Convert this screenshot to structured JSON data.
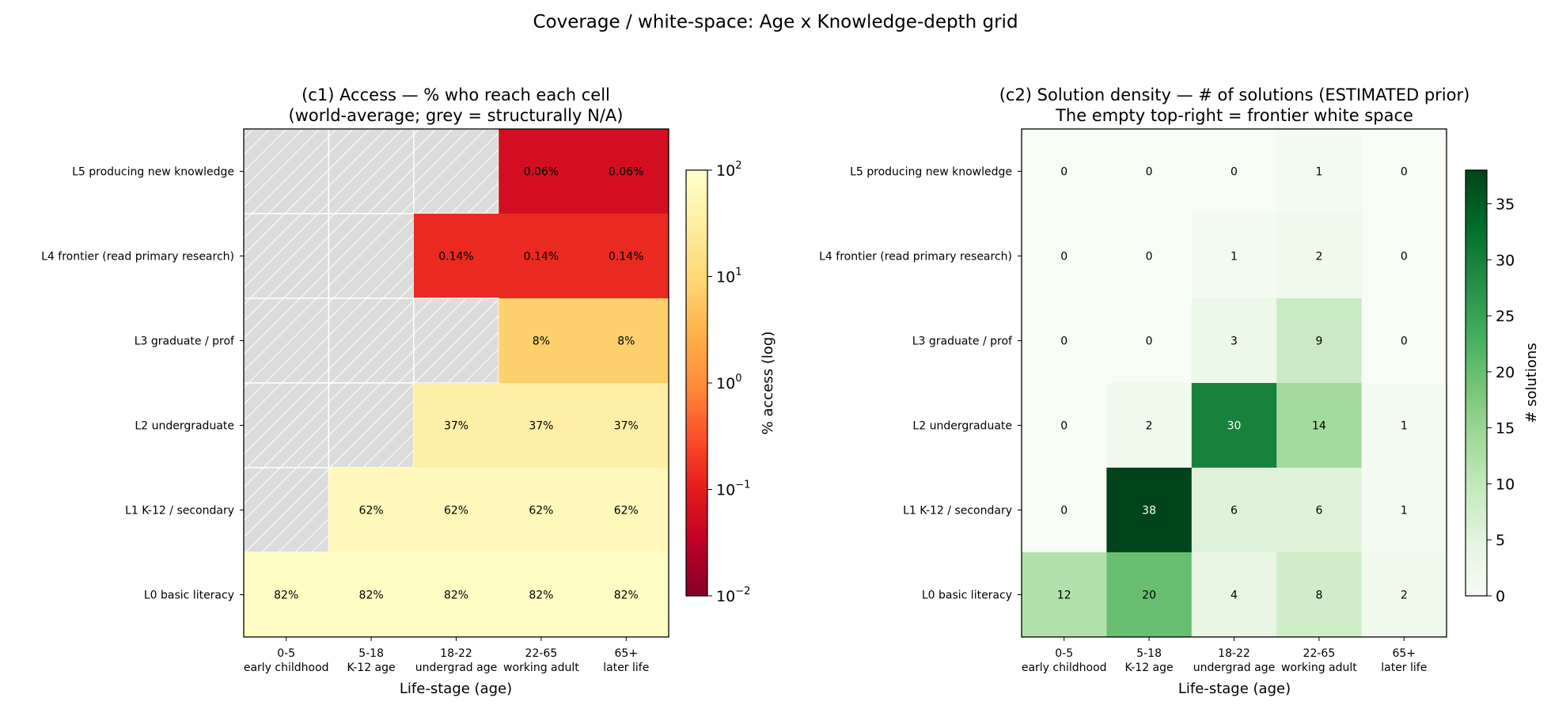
{
  "figure": {
    "suptitle": "Coverage / white-space: Age x Knowledge-depth grid"
  },
  "chart_data": [
    {
      "type": "heatmap",
      "title": [
        "(c1) Access — % who reach each cell",
        "(world-average; grey = structurally N/A)"
      ],
      "xlabel": "Life-stage (age)",
      "x_tick_labels": [
        [
          "0-5",
          "early childhood"
        ],
        [
          "5-18",
          "K-12 age"
        ],
        [
          "18-22",
          "undergrad age"
        ],
        [
          "22-65",
          "working adult"
        ],
        [
          "65+",
          "later life"
        ]
      ],
      "y_tick_labels": [
        "L5 producing new knowledge",
        "L4 frontier (read primary research)",
        "L3 graduate / prof",
        "L2 undergraduate",
        "L1 K-12 / secondary",
        "L0 basic literacy"
      ],
      "values": [
        [
          null,
          null,
          null,
          0.06,
          0.06
        ],
        [
          null,
          null,
          0.14,
          0.14,
          0.14
        ],
        [
          null,
          null,
          null,
          8,
          8
        ],
        [
          null,
          null,
          37,
          37,
          37
        ],
        [
          null,
          62,
          62,
          62,
          62
        ],
        [
          82,
          82,
          82,
          82,
          82
        ]
      ],
      "cell_labels": [
        [
          "",
          "",
          "",
          "0.06%",
          "0.06%"
        ],
        [
          "",
          "",
          "0.14%",
          "0.14%",
          "0.14%"
        ],
        [
          "",
          "",
          "",
          "8%",
          "8%"
        ],
        [
          "",
          "",
          "37%",
          "37%",
          "37%"
        ],
        [
          "",
          "62%",
          "62%",
          "62%",
          "62%"
        ],
        [
          "82%",
          "82%",
          "82%",
          "82%",
          "82%"
        ]
      ],
      "colormap": "YlOrRd_r",
      "na_color": "#dcdcdc",
      "scale": "log",
      "colorbar": {
        "label": "% access (log)",
        "range": [
          0.01,
          100
        ],
        "ticks": [
          {
            "base": "10",
            "exp": "2"
          },
          {
            "base": "10",
            "exp": "1"
          },
          {
            "base": "10",
            "exp": "0"
          },
          {
            "base": "10",
            "exp": "−1"
          },
          {
            "base": "10",
            "exp": "−2"
          }
        ]
      }
    },
    {
      "type": "heatmap",
      "title": [
        "(c2) Solution density — # of solutions (ESTIMATED prior)",
        "The empty top-right = frontier white space"
      ],
      "xlabel": "Life-stage (age)",
      "x_tick_labels": [
        [
          "0-5",
          "early childhood"
        ],
        [
          "5-18",
          "K-12 age"
        ],
        [
          "18-22",
          "undergrad age"
        ],
        [
          "22-65",
          "working adult"
        ],
        [
          "65+",
          "later life"
        ]
      ],
      "y_tick_labels": [
        "L5 producing new knowledge",
        "L4 frontier (read primary research)",
        "L3 graduate / prof",
        "L2 undergraduate",
        "L1 K-12 / secondary",
        "L0 basic literacy"
      ],
      "values": [
        [
          0,
          0,
          0,
          1,
          0
        ],
        [
          0,
          0,
          1,
          2,
          0
        ],
        [
          0,
          0,
          3,
          9,
          0
        ],
        [
          0,
          2,
          30,
          14,
          1
        ],
        [
          0,
          38,
          6,
          6,
          1
        ],
        [
          12,
          20,
          4,
          8,
          2
        ]
      ],
      "colormap": "Greens",
      "range": [
        0,
        38
      ],
      "colorbar": {
        "label": "# solutions",
        "ticks": [
          "0",
          "5",
          "10",
          "15",
          "20",
          "25",
          "30",
          "35"
        ]
      }
    }
  ]
}
